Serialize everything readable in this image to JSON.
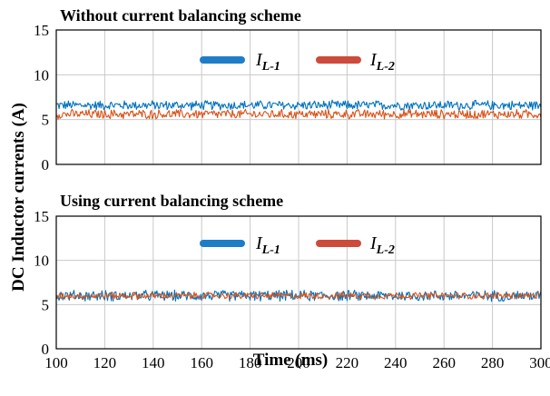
{
  "chart_data": [
    {
      "type": "line",
      "title": "Without current balancing scheme",
      "xlim": [
        100,
        300
      ],
      "ylim": [
        0,
        15
      ],
      "yticks": [
        0,
        5,
        10,
        15
      ],
      "grid": true,
      "legend_position": "top-center",
      "series": [
        {
          "name_main": "I",
          "name_sub": "L-1",
          "color": "#0072BD",
          "mean": 6.6,
          "ripple": 0.6
        },
        {
          "name_main": "I",
          "name_sub": "L-2",
          "color": "#D95319",
          "mean": 5.6,
          "ripple": 0.6
        }
      ]
    },
    {
      "type": "line",
      "title": "Using current balancing scheme",
      "xlim": [
        100,
        300
      ],
      "ylim": [
        0,
        15
      ],
      "yticks": [
        0,
        5,
        10,
        15
      ],
      "grid": true,
      "legend_position": "top-center",
      "series": [
        {
          "name_main": "I",
          "name_sub": "L-1",
          "color": "#0072BD",
          "mean": 6.0,
          "ripple": 0.7
        },
        {
          "name_main": "I",
          "name_sub": "L-2",
          "color": "#D95319",
          "mean": 6.0,
          "ripple": 0.45
        }
      ]
    }
  ],
  "xaxis": {
    "label": "Time (ms)",
    "ticks": [
      100,
      120,
      140,
      160,
      180,
      200,
      220,
      240,
      260,
      280,
      300
    ]
  },
  "yaxis": {
    "label": "DC Inductor currents (A)"
  },
  "legend_colors": {
    "L1": "#0072BD",
    "L1_swatch": "#1F7DC8",
    "L2": "#D95319",
    "L2_swatch": "#CC4B3A"
  }
}
